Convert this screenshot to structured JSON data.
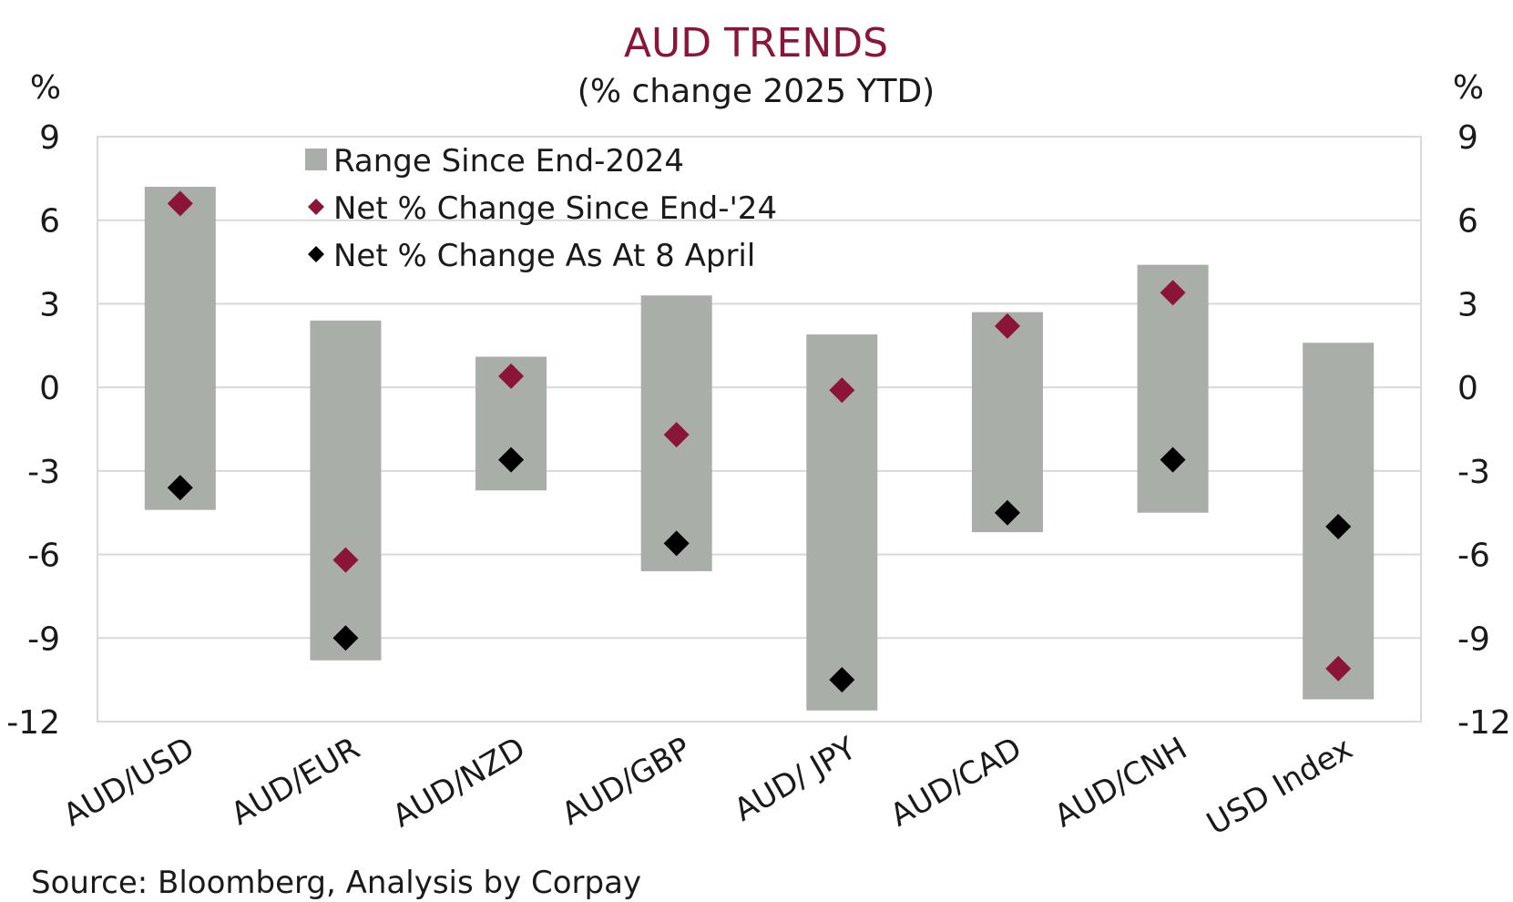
{
  "title": "AUD TRENDS",
  "subtitle": "(% change 2025 YTD)",
  "source": "Source: Bloomberg, Analysis by Corpay",
  "colors": {
    "range": "#a9aea9",
    "net_end24": "#8a1538",
    "net_8april": "#000000",
    "title": "#8a1538",
    "grid": "#d9d9d9"
  },
  "chart_data": {
    "type": "range-marker",
    "title": "AUD TRENDS",
    "subtitle": "(% change 2025 YTD)",
    "ylabel_left": "%",
    "ylabel_right": "%",
    "ylim": [
      -12,
      9
    ],
    "yticks": [
      9,
      6,
      3,
      0,
      -3,
      -6,
      -9,
      -12
    ],
    "ytick_labels": [
      "9",
      "6",
      "3",
      "0",
      "-3",
      "-6",
      "-9",
      "-12"
    ],
    "grid": true,
    "legend_position": "top-center",
    "categories": [
      "AUD/USD",
      "AUD/EUR",
      "AUD/NZD",
      "AUD/GBP",
      "AUD/ JPY",
      "AUD/CAD",
      "AUD/CNH",
      "USD Index"
    ],
    "series": [
      {
        "name": "Range Since End-2024",
        "kind": "range",
        "low": [
          -4.4,
          -9.8,
          -3.7,
          -6.6,
          -11.6,
          -5.2,
          -4.5,
          -11.2
        ],
        "high": [
          7.2,
          2.4,
          1.1,
          3.3,
          1.9,
          2.7,
          4.4,
          1.6
        ]
      },
      {
        "name": "Net % Change Since End-'24",
        "kind": "marker",
        "values": [
          6.6,
          -6.2,
          0.4,
          -1.7,
          -0.1,
          2.2,
          3.4,
          -10.1
        ]
      },
      {
        "name": "Net % Change As At 8 April",
        "kind": "marker",
        "values": [
          -3.6,
          -9.0,
          -2.6,
          -5.6,
          -10.5,
          -4.5,
          -2.6,
          -5.0
        ]
      }
    ]
  }
}
